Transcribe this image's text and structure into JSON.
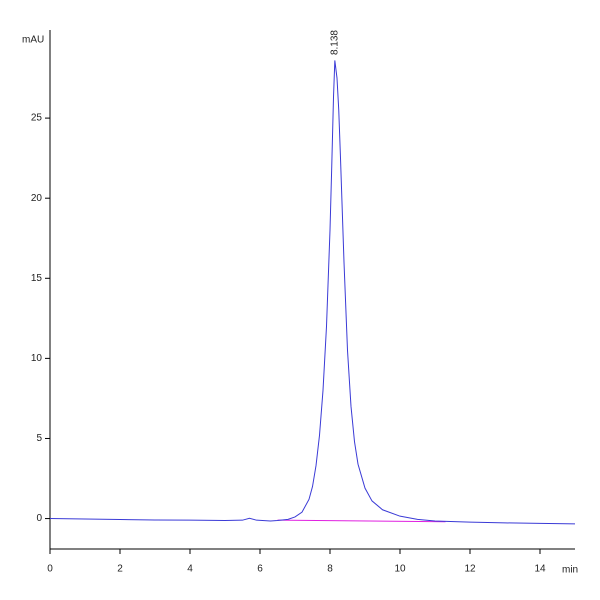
{
  "chart_data": {
    "type": "line",
    "y_label": "mAU",
    "x_label": "min",
    "x": [
      0,
      1,
      2,
      3,
      4,
      5,
      5.5,
      5.7,
      5.9,
      6.3,
      6.5,
      6.8,
      7.0,
      7.2,
      7.4,
      7.5,
      7.6,
      7.7,
      7.8,
      7.9,
      8.0,
      8.05,
      8.1,
      8.138,
      8.2,
      8.25,
      8.3,
      8.4,
      8.5,
      8.6,
      8.7,
      8.8,
      9.0,
      9.2,
      9.5,
      10,
      10.5,
      11,
      12,
      13,
      14,
      15
    ],
    "series": [
      {
        "color": "#3a3ad6",
        "values": [
          0,
          -0.03,
          -0.06,
          -0.09,
          -0.1,
          -0.12,
          -0.1,
          0.02,
          -0.1,
          -0.15,
          -0.12,
          -0.05,
          0.1,
          0.4,
          1.2,
          2.0,
          3.3,
          5.2,
          8.0,
          12.0,
          18.0,
          22.0,
          26.3,
          28.6,
          27.5,
          25.5,
          22.5,
          16.0,
          10.5,
          7.0,
          4.8,
          3.4,
          1.9,
          1.1,
          0.55,
          0.15,
          -0.05,
          -0.15,
          -0.22,
          -0.27,
          -0.3,
          -0.33
        ]
      }
    ],
    "baseline": {
      "color": "#e020e0",
      "x": [
        6.5,
        11.3
      ],
      "y": [
        -0.1,
        -0.2
      ]
    },
    "annotations": [
      {
        "x": 8.138,
        "text": "8.138"
      }
    ],
    "xlim": [
      0,
      15
    ],
    "ylim": [
      -1.9,
      30.5
    ],
    "xticks": [
      0,
      2,
      4,
      6,
      8,
      10,
      12,
      14
    ],
    "yticks": [
      0,
      5,
      10,
      15,
      20,
      25
    ]
  }
}
